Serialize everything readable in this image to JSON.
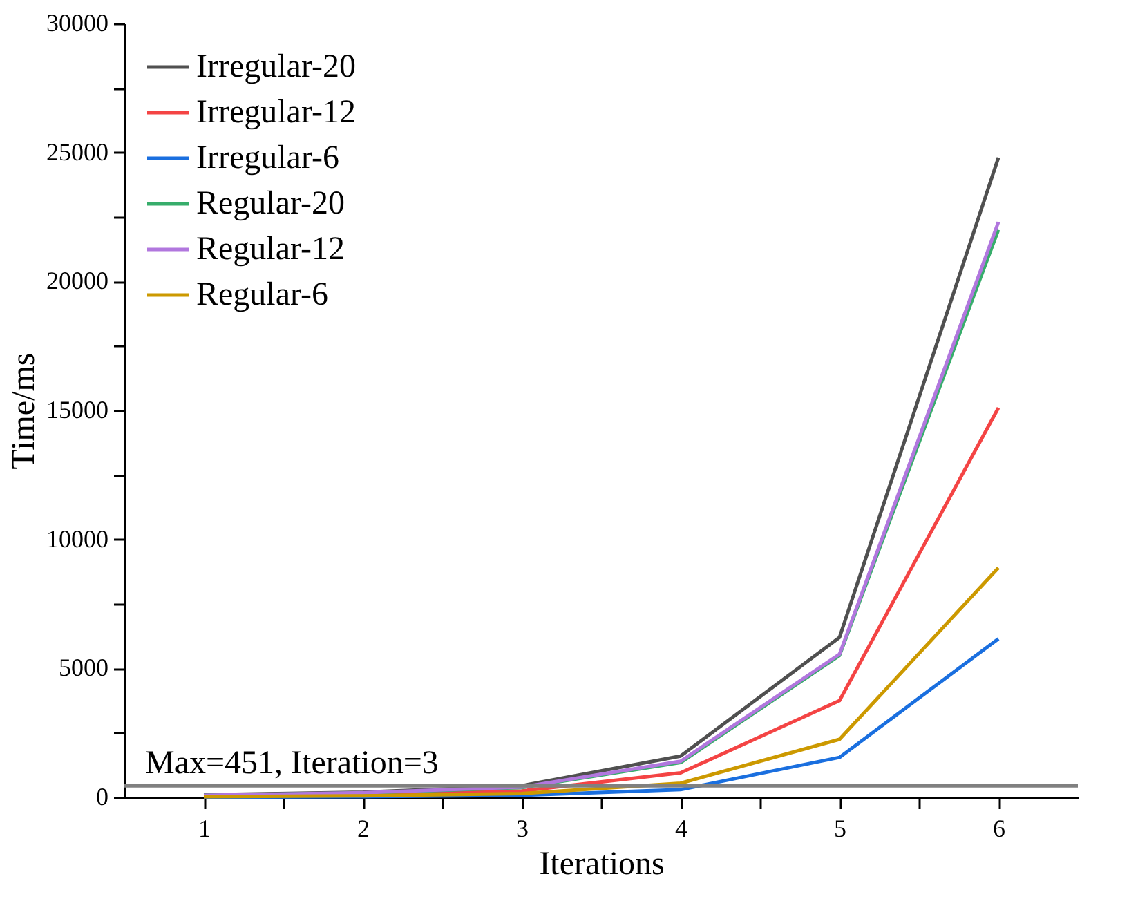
{
  "chart_data": {
    "type": "line",
    "xlabel": "Iterations",
    "ylabel": "Time/ms",
    "x": [
      1,
      2,
      3,
      4,
      5,
      6
    ],
    "xlim": [
      0.5,
      6.5
    ],
    "xticks": [
      1,
      {
        "value": 1.5,
        "label": null
      },
      2,
      {
        "value": 2.5,
        "label": null
      },
      3,
      {
        "value": 3.5,
        "label": null
      },
      4,
      {
        "value": 4.5,
        "label": null
      },
      5,
      {
        "value": 5.5,
        "label": null
      },
      6
    ],
    "ylim": [
      0,
      30000
    ],
    "yticks": [
      0,
      {
        "value": 2500,
        "label": null
      },
      5000,
      {
        "value": 7500,
        "label": null
      },
      10000,
      {
        "value": 12500,
        "label": null
      },
      15000,
      {
        "value": 17500,
        "label": null
      },
      20000,
      {
        "value": 22500,
        "label": null
      },
      25000,
      {
        "value": 27500,
        "label": null
      },
      30000
    ],
    "series": [
      {
        "name": "Irregular-20",
        "color": "#505050",
        "values": [
          100,
          200,
          450,
          1600,
          6200,
          24800
        ]
      },
      {
        "name": "Irregular-12",
        "color": "#f44444",
        "values": [
          50,
          100,
          250,
          950,
          3750,
          15100
        ]
      },
      {
        "name": "Irregular-6",
        "color": "#1a6fdf",
        "values": [
          10,
          30,
          80,
          300,
          1550,
          6150
        ]
      },
      {
        "name": "Regular-20",
        "color": "#37ad6b",
        "values": [
          80,
          170,
          380,
          1350,
          5500,
          22000
        ]
      },
      {
        "name": "Regular-12",
        "color": "#b177de",
        "values": [
          80,
          180,
          400,
          1400,
          5550,
          22300
        ]
      },
      {
        "name": "Regular-6",
        "color": "#cc9900",
        "values": [
          30,
          60,
          150,
          550,
          2250,
          8900
        ]
      }
    ],
    "ref_lines": [
      {
        "axis": "y",
        "value": 451,
        "label": "Max=451, Iteration=3",
        "color": "#808080"
      }
    ],
    "legend": "top left",
    "grid": false,
    "marker": "none",
    "line_style": "solid"
  }
}
